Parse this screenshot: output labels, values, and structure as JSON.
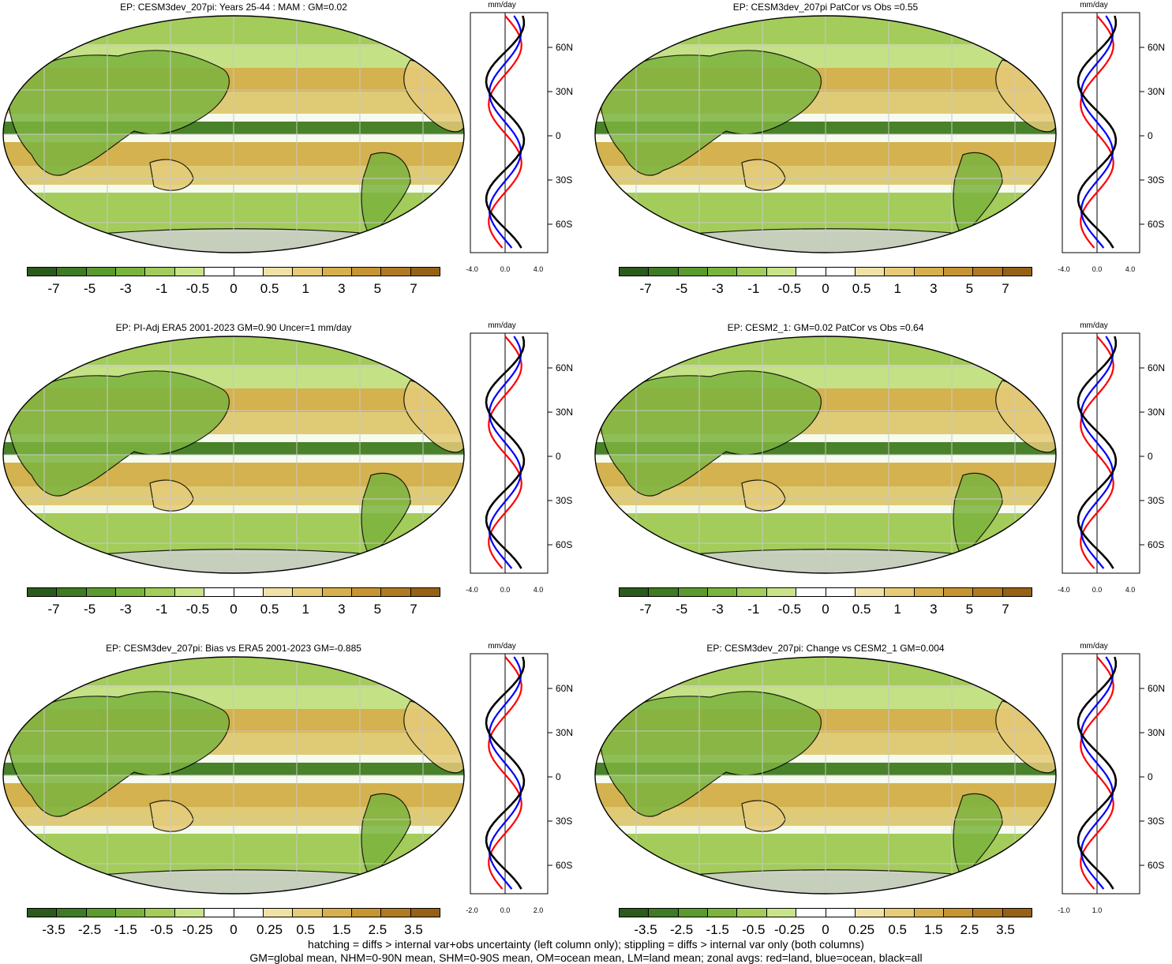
{
  "panels": [
    {
      "title": "EP: CESM3dev_207pi: Years 25-44 : MAM : GM=0.02",
      "colorbar_labels": [
        "-7",
        "-5",
        "-3",
        "-1",
        "-0.5",
        "0",
        "0.5",
        "1",
        "3",
        "5",
        "7"
      ],
      "profile_unit": "mm/day",
      "profile_ticks": [
        "-4.0",
        "0.0",
        "4.0"
      ],
      "lat_labels": [
        "60N",
        "30N",
        "0",
        "30S",
        "60S"
      ]
    },
    {
      "title": "EP: CESM3dev_207pi PatCor vs Obs =0.55",
      "colorbar_labels": [
        "-7",
        "-5",
        "-3",
        "-1",
        "-0.5",
        "0",
        "0.5",
        "1",
        "3",
        "5",
        "7"
      ],
      "profile_unit": "mm/day",
      "profile_ticks": [
        "-4.0",
        "0.0",
        "4.0"
      ],
      "lat_labels": [
        "60N",
        "30N",
        "0",
        "30S",
        "60S"
      ]
    },
    {
      "title": "EP: PI-Adj ERA5 2001-2023 GM=0.90 Uncer=1 mm/day",
      "colorbar_labels": [
        "-7",
        "-5",
        "-3",
        "-1",
        "-0.5",
        "0",
        "0.5",
        "1",
        "3",
        "5",
        "7"
      ],
      "profile_unit": "mm/day",
      "profile_ticks": [
        "-4.0",
        "0.0",
        "4.0"
      ],
      "lat_labels": [
        "60N",
        "30N",
        "0",
        "30S",
        "60S"
      ]
    },
    {
      "title": "EP: CESM2_1: GM=0.02 PatCor vs Obs =0.64",
      "colorbar_labels": [
        "-7",
        "-5",
        "-3",
        "-1",
        "-0.5",
        "0",
        "0.5",
        "1",
        "3",
        "5",
        "7"
      ],
      "profile_unit": "mm/day",
      "profile_ticks": [
        "-4.0",
        "0.0",
        "4.0"
      ],
      "lat_labels": [
        "60N",
        "30N",
        "0",
        "30S",
        "60S"
      ]
    },
    {
      "title": "EP: CESM3dev_207pi: Bias vs ERA5 2001-2023 GM=-0.885",
      "colorbar_labels": [
        "-3.5",
        "-2.5",
        "-1.5",
        "-0.5",
        "-0.25",
        "0",
        "0.25",
        "0.5",
        "1.5",
        "2.5",
        "3.5"
      ],
      "profile_unit": "mm/day",
      "profile_ticks": [
        "-2.0",
        "0.0",
        "2.0"
      ],
      "lat_labels": [
        "60N",
        "30N",
        "0",
        "30S",
        "60S"
      ]
    },
    {
      "title": "EP: CESM3dev_207pi: Change vs CESM2_1 GM=0.004",
      "colorbar_labels": [
        "-3.5",
        "-2.5",
        "-1.5",
        "-0.5",
        "-0.25",
        "0",
        "0.25",
        "0.5",
        "1.5",
        "2.5",
        "3.5"
      ],
      "profile_unit": "mm/day",
      "profile_ticks": [
        "-1.0",
        "1.0"
      ],
      "lat_labels": [
        "60N",
        "30N",
        "0",
        "30S",
        "60S"
      ]
    }
  ],
  "colors": {
    "palette": [
      "#2c5a1c",
      "#3f7a24",
      "#5a9a2e",
      "#7cb33e",
      "#a3cc5a",
      "#c8e38a",
      "#ffffff",
      "#ffffff",
      "#f0e2a6",
      "#e6cb78",
      "#d8af4e",
      "#c79432",
      "#b07a22",
      "#966116"
    ],
    "land": "#d3d3d3",
    "land_series": "#ff0000",
    "ocean_series": "#0000ff",
    "all_series": "#000000"
  },
  "legend": {
    "line1": "hatching = diffs > internal var+obs uncertainty (left column only); stippling = diffs > internal var only (both columns)",
    "line2": "GM=global mean, NHM=0-90N mean, SHM=0-90S mean, OM=ocean mean, LM=land mean; zonal avgs: red=land, blue=ocean, black=all"
  }
}
